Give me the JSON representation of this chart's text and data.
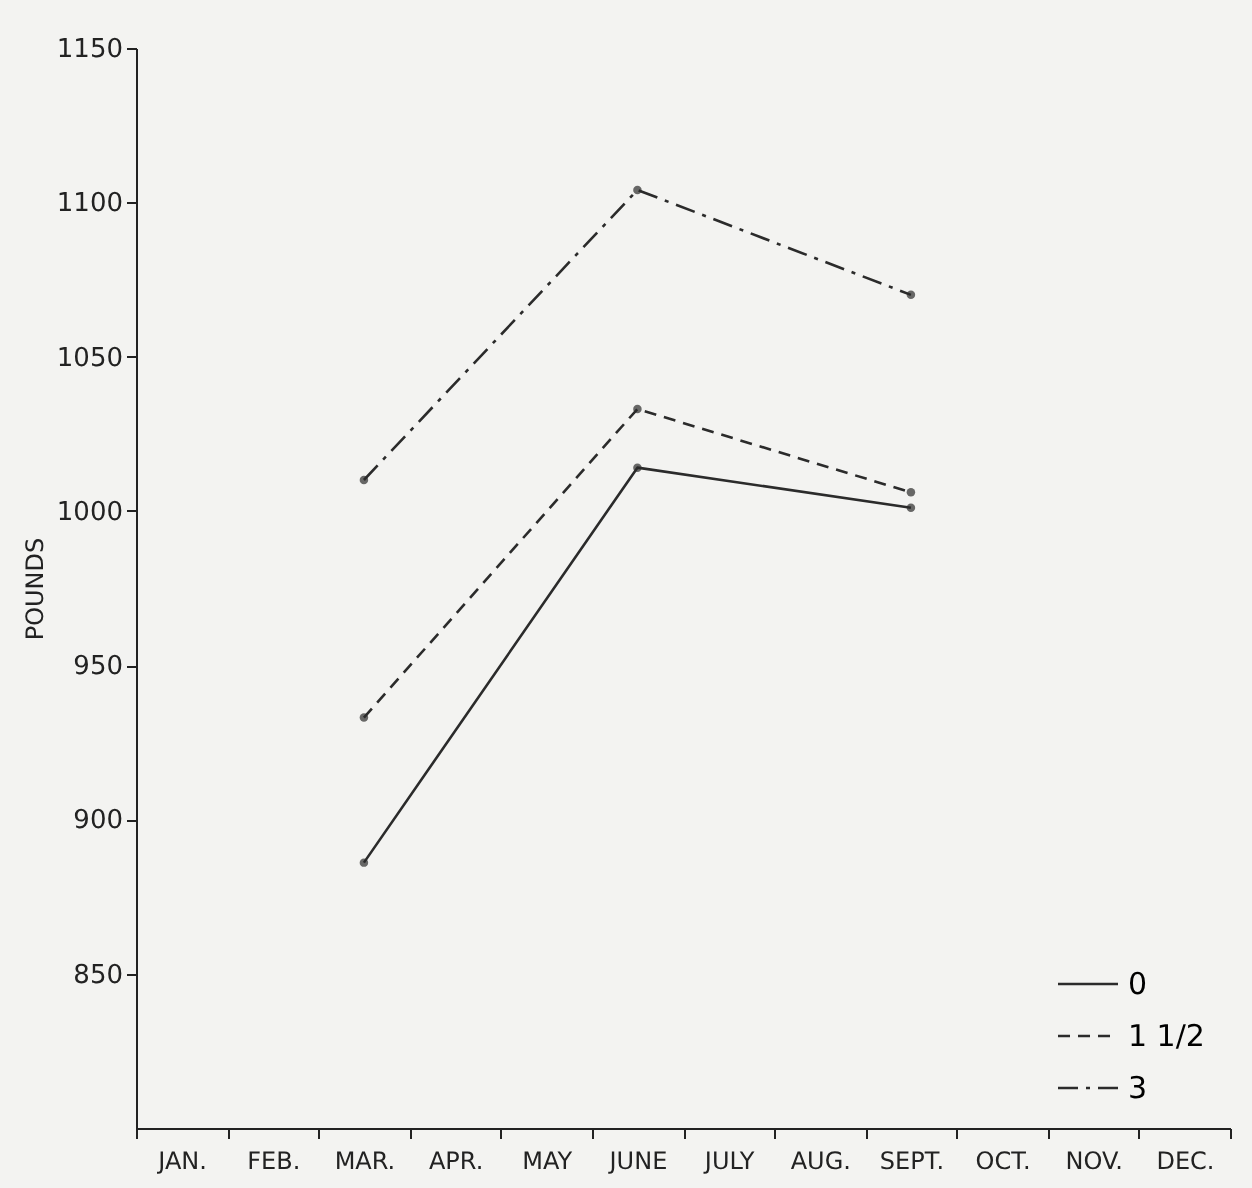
{
  "chart_data": {
    "type": "line",
    "ylabel": "POUNDS",
    "categories": [
      "JAN.",
      "FEB.",
      "MAR.",
      "APR.",
      "MAY",
      "JUNE",
      "JULY",
      "AUG.",
      "SEPT.",
      "OCT.",
      "NOV.",
      "DEC."
    ],
    "series": [
      {
        "name": "0",
        "color": "#2b2b2b",
        "line_style": "solid",
        "values": [
          null,
          null,
          886,
          null,
          null,
          1014,
          null,
          null,
          1001,
          null,
          null,
          null
        ]
      },
      {
        "name": "1 1/2",
        "color": "#2b2b2b",
        "line_style": "dashed",
        "values": [
          null,
          null,
          933,
          null,
          null,
          1033,
          null,
          null,
          1006,
          null,
          null,
          null
        ]
      },
      {
        "name": "3",
        "color": "#2b2b2b",
        "line_style": "dashdot",
        "values": [
          null,
          null,
          1010,
          null,
          null,
          1104,
          null,
          null,
          1070,
          null,
          null,
          null
        ]
      }
    ],
    "ylim": [
      800,
      1150
    ],
    "yticks": [
      850,
      900,
      950,
      1000,
      1050,
      1100,
      1150
    ],
    "grid": false,
    "legend": "bottom right",
    "marker": "circle"
  }
}
